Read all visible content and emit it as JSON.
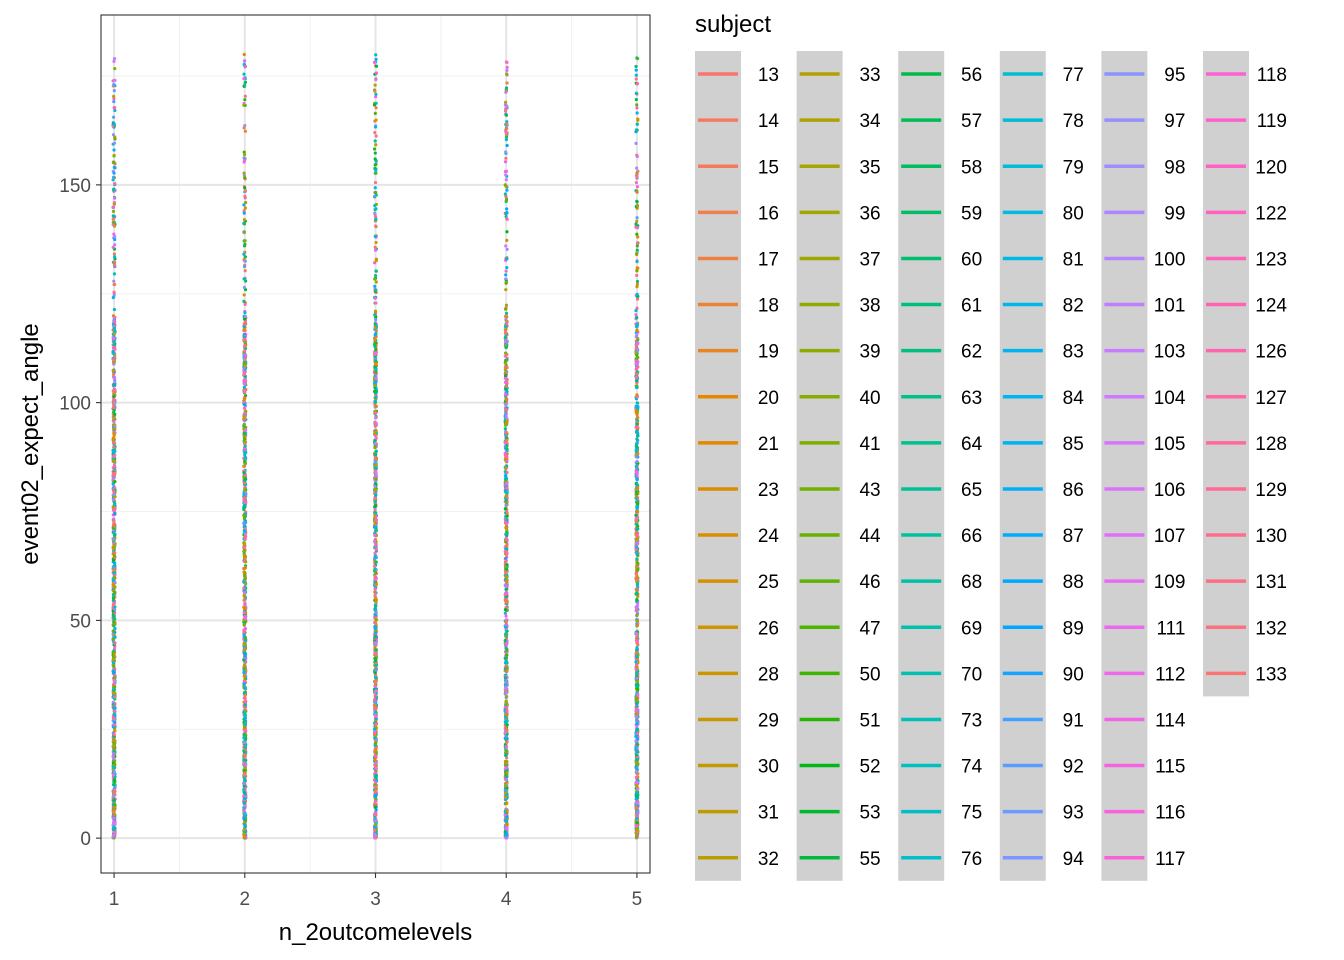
{
  "chart_data": {
    "type": "scatter",
    "title": "",
    "xlabel": "n_2outcomelevels",
    "ylabel": "event02_expect_angle",
    "x_ticks": [
      1,
      2,
      3,
      4,
      5
    ],
    "y_ticks": [
      0,
      50,
      100,
      150
    ],
    "xlim": [
      0.9,
      5.1
    ],
    "ylim": [
      -8,
      189
    ],
    "grid": true,
    "point_size": "very small",
    "note": "Dense vertical stacks of points at each x level, y ranging 0–180, colored by subject.",
    "x_levels": [
      1,
      2,
      3,
      4,
      5
    ],
    "y_range": [
      0,
      180
    ],
    "legend": {
      "title": "subject",
      "placement": "right",
      "columns": 6,
      "rows_per_column": 18,
      "entries": [
        "13",
        "14",
        "15",
        "16",
        "17",
        "18",
        "19",
        "20",
        "21",
        "23",
        "24",
        "25",
        "26",
        "28",
        "29",
        "30",
        "31",
        "32",
        "33",
        "34",
        "35",
        "36",
        "37",
        "38",
        "39",
        "40",
        "41",
        "43",
        "44",
        "46",
        "47",
        "50",
        "51",
        "52",
        "53",
        "55",
        "56",
        "57",
        "58",
        "59",
        "60",
        "61",
        "62",
        "63",
        "64",
        "65",
        "66",
        "68",
        "69",
        "70",
        "73",
        "74",
        "75",
        "76",
        "77",
        "78",
        "79",
        "80",
        "81",
        "82",
        "83",
        "84",
        "85",
        "86",
        "87",
        "88",
        "89",
        "90",
        "91",
        "92",
        "93",
        "94",
        "95",
        "97",
        "98",
        "99",
        "100",
        "101",
        "103",
        "104",
        "105",
        "106",
        "107",
        "109",
        "111",
        "112",
        "114",
        "115",
        "116",
        "117",
        "118",
        "119",
        "120",
        "122",
        "123",
        "124",
        "126",
        "127",
        "128",
        "129",
        "130",
        "131",
        "132",
        "133"
      ]
    }
  },
  "colors": {
    "panel_border": "#333333",
    "grid_major": "#e5e5e5",
    "grid_minor": "#f2f2f2",
    "legend_key_bg": "#d0d0d0",
    "text": "#000000",
    "tick_text": "#4d4d4d"
  }
}
